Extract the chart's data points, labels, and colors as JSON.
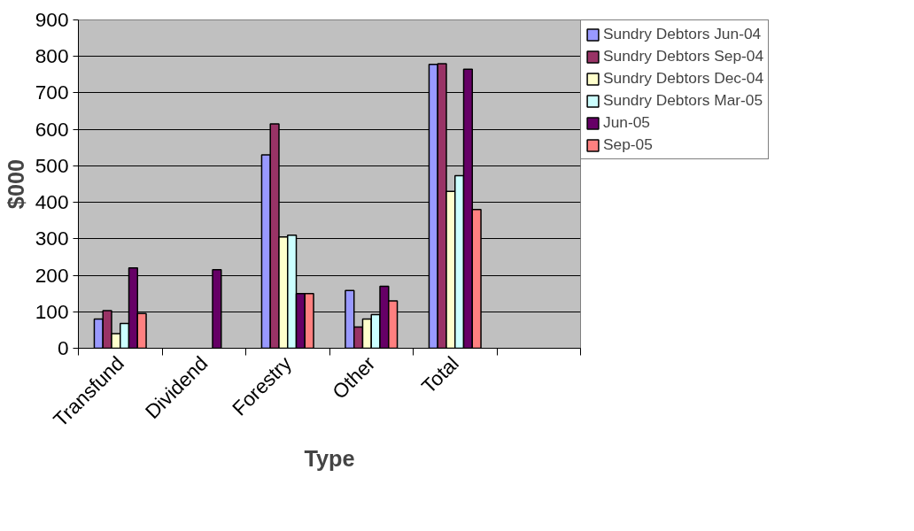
{
  "chart_data": {
    "type": "bar",
    "xlabel": "Type",
    "ylabel": "$000",
    "categories": [
      "Transfund",
      "Dividend",
      "Forestry",
      "Other",
      "Total",
      null
    ],
    "series": [
      {
        "name": "Sundry Debtors Jun-04",
        "color": "#9999ff",
        "values": [
          80,
          null,
          530,
          158,
          778,
          null
        ]
      },
      {
        "name": "Sundry Debtors Sep-04",
        "color": "#993366",
        "values": [
          103,
          null,
          615,
          58,
          780,
          null
        ]
      },
      {
        "name": "Sundry Debtors Dec-04",
        "color": "#ffffcc",
        "values": [
          40,
          null,
          305,
          80,
          430,
          null
        ]
      },
      {
        "name": "Sundry Debtors Mar-05",
        "color": "#ccffff",
        "values": [
          68,
          null,
          310,
          92,
          473,
          null
        ]
      },
      {
        "name": "Jun-05",
        "color": "#660066",
        "values": [
          220,
          215,
          150,
          170,
          765,
          null
        ]
      },
      {
        "name": "Sep-05",
        "color": "#ff8080",
        "values": [
          95,
          null,
          150,
          130,
          380,
          null
        ]
      }
    ],
    "ylim": [
      0,
      900
    ],
    "yticks": [
      0,
      100,
      200,
      300,
      400,
      500,
      600,
      700,
      800,
      900
    ],
    "grid": "y",
    "legend": "right"
  }
}
